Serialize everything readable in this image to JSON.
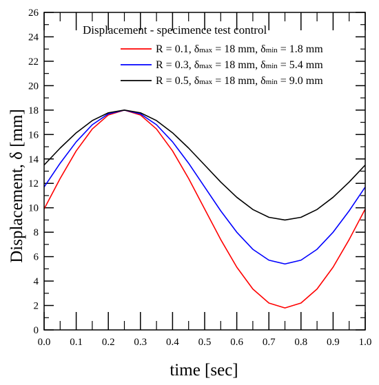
{
  "chart_data": {
    "type": "line",
    "title": "",
    "xlabel": "time [sec]",
    "ylabel": "Displacement, δ [mm]",
    "xlim": [
      0,
      1
    ],
    "ylim": [
      0,
      26
    ],
    "xticks": [
      "0.0",
      "0.1",
      "0.2",
      "0.3",
      "0.4",
      "0.5",
      "0.6",
      "0.7",
      "0.8",
      "0.9",
      "1.0"
    ],
    "yticks": [
      "0",
      "2",
      "4",
      "6",
      "8",
      "10",
      "12",
      "14",
      "16",
      "18",
      "20",
      "22",
      "24",
      "26"
    ],
    "grid": false,
    "legend_placement": "top-right",
    "legend_title": "Displacement - specimence test control",
    "x": [
      0.0,
      0.05,
      0.1,
      0.15,
      0.2,
      0.25,
      0.3,
      0.35,
      0.4,
      0.45,
      0.5,
      0.55,
      0.6,
      0.65,
      0.7,
      0.75,
      0.8,
      0.85,
      0.9,
      0.95,
      1.0
    ],
    "series": [
      {
        "name": "R = 0.1, δmax = 18 mm, δmin = 1.8 mm",
        "legend": {
          "pre": "R = 0.1, δ",
          "sub1": "max",
          "mid": " = 18 mm, δ",
          "sub2": "min",
          "post": " = 1.8 mm"
        },
        "color": "#ff0000",
        "values": [
          9.9,
          12.4,
          14.66,
          16.45,
          17.6,
          18.0,
          17.6,
          16.45,
          14.66,
          12.4,
          9.9,
          7.4,
          5.14,
          3.35,
          2.2,
          1.8,
          2.2,
          3.35,
          5.14,
          7.4,
          9.9
        ]
      },
      {
        "name": "R = 0.3, δmax = 18 mm, δmin = 5.4 mm",
        "legend": {
          "pre": "R = 0.3, δ",
          "sub1": "max",
          "mid": " = 18 mm, δ",
          "sub2": "min",
          "post": " = 5.4 mm"
        },
        "color": "#0000ff",
        "values": [
          11.7,
          13.65,
          15.4,
          16.8,
          17.69,
          18.0,
          17.69,
          16.8,
          15.4,
          13.65,
          11.7,
          9.75,
          8.0,
          6.6,
          5.71,
          5.4,
          5.71,
          6.6,
          8.0,
          9.75,
          11.7
        ]
      },
      {
        "name": "R = 0.5, δmax = 18 mm, δmin = 9.0 mm",
        "legend": {
          "pre": "R = 0.5, δ",
          "sub1": "max",
          "mid": " = 18 mm, δ",
          "sub2": "min",
          "post": " = 9.0 mm"
        },
        "color": "#000000",
        "values": [
          13.5,
          14.89,
          16.14,
          17.14,
          17.78,
          18.0,
          17.78,
          17.14,
          16.14,
          14.89,
          13.5,
          12.11,
          10.86,
          9.86,
          9.22,
          9.0,
          9.22,
          9.86,
          10.86,
          12.11,
          13.5
        ]
      }
    ]
  }
}
